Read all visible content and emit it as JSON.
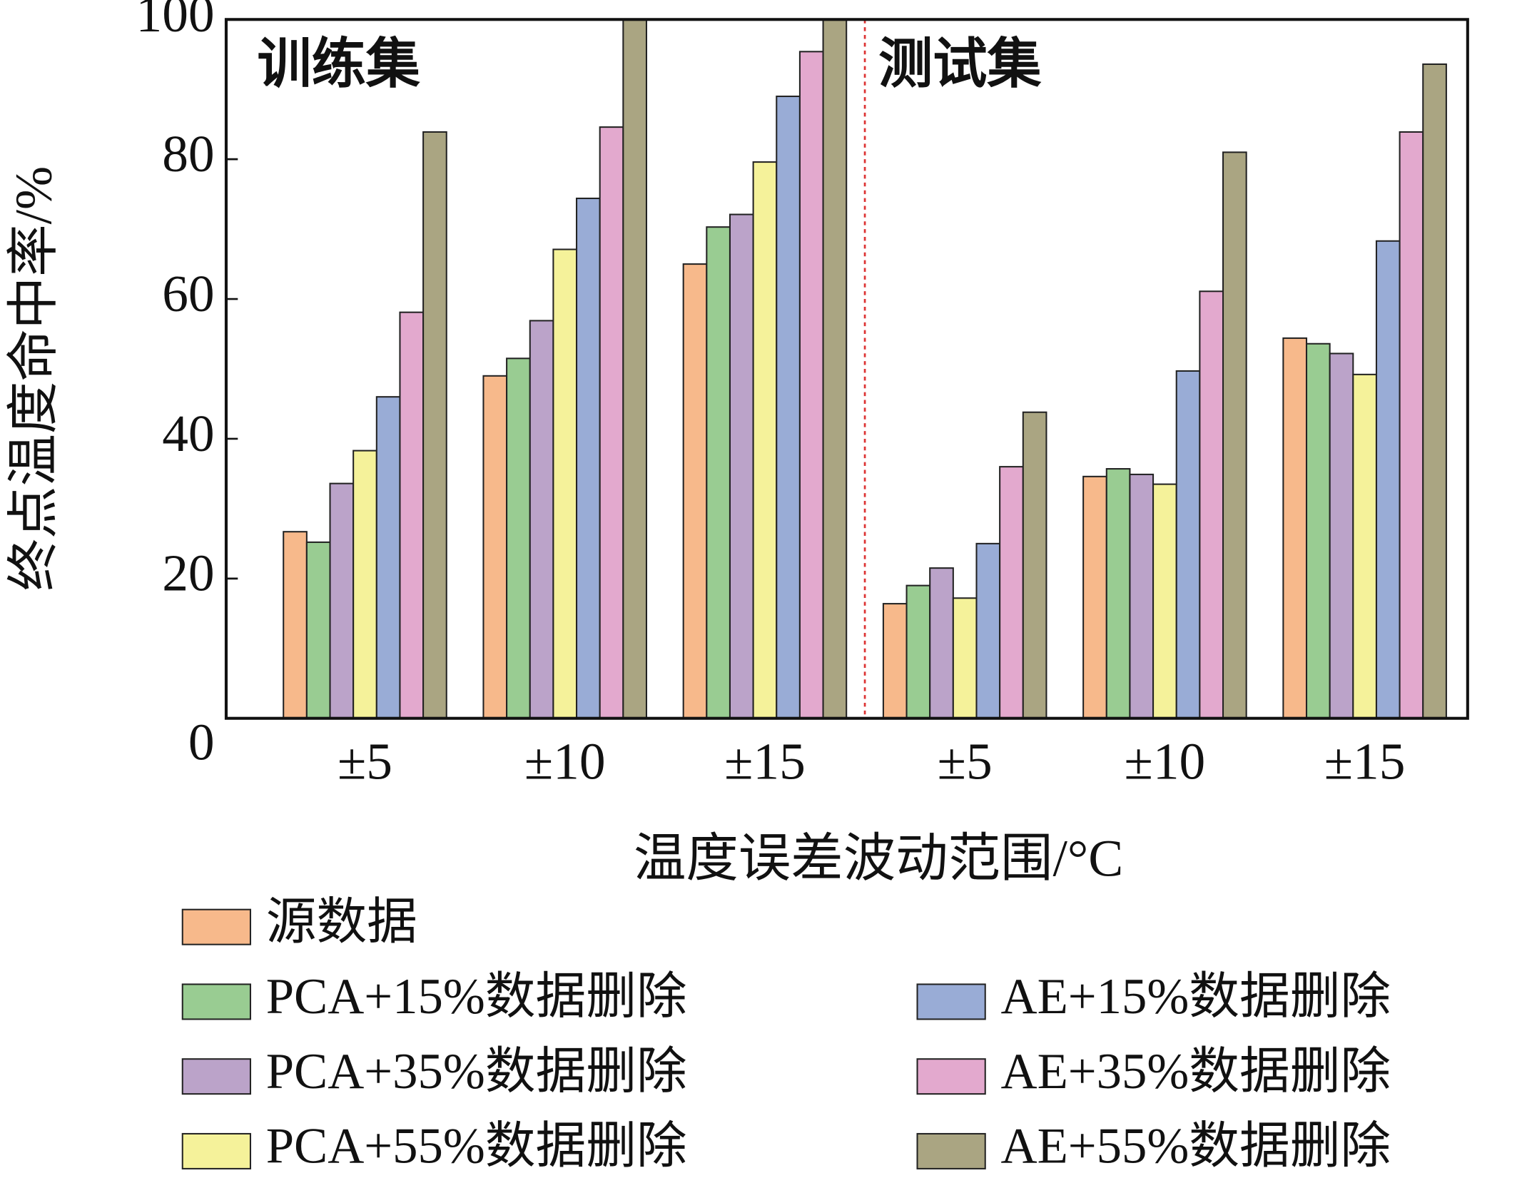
{
  "chart_data": {
    "type": "bar",
    "y_label": "终点温度命中率/%",
    "x_label": "温度误差波动范围/°C",
    "annotations": [
      "训练集",
      "测试集"
    ],
    "categories": [
      "±5",
      "±10",
      "±15",
      "±5",
      "±10",
      "±15"
    ],
    "series": [
      {
        "name": "源数据",
        "color": "#f7b98b",
        "values": [
          26.7,
          49.0,
          65.0,
          16.4,
          34.6,
          54.4
        ]
      },
      {
        "name": "PCA+15%数据删除",
        "color": "#99cc92",
        "values": [
          25.2,
          51.5,
          70.3,
          19.0,
          35.7,
          53.6
        ]
      },
      {
        "name": "PCA+35%数据删除",
        "color": "#bba3c9",
        "values": [
          33.6,
          56.9,
          72.1,
          21.5,
          34.9,
          52.2
        ]
      },
      {
        "name": "PCA+55%数据删除",
        "color": "#f5f29a",
        "values": [
          38.3,
          67.1,
          79.6,
          17.2,
          33.5,
          49.2
        ]
      },
      {
        "name": "AE+15%数据删除",
        "color": "#99acd6",
        "values": [
          46.0,
          74.4,
          89.0,
          25.0,
          49.7,
          68.3
        ]
      },
      {
        "name": "AE+35%数据删除",
        "color": "#e3a9ce",
        "values": [
          58.1,
          84.6,
          95.4,
          36.0,
          61.1,
          83.9
        ]
      },
      {
        "name": "AE+55%数据删除",
        "color": "#aaa582",
        "values": [
          83.9,
          100,
          100,
          43.8,
          81.0,
          93.6
        ]
      }
    ],
    "ylim": [
      0,
      100
    ],
    "yticks": [
      0,
      20,
      40,
      60,
      80,
      100
    ]
  }
}
